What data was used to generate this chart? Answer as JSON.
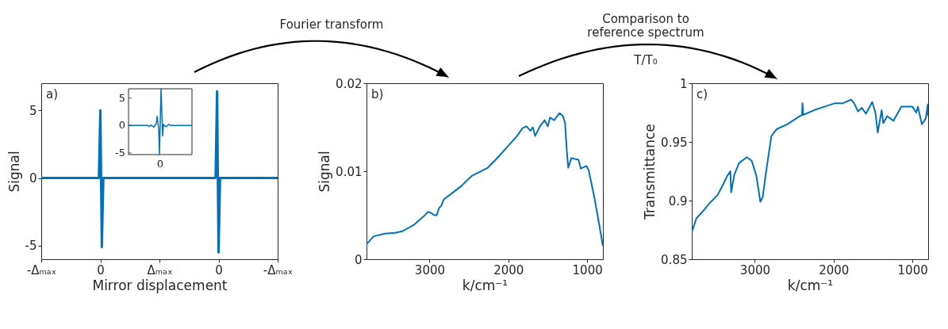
{
  "chart_data": [
    {
      "type": "line",
      "annotations": [
        "a)"
      ],
      "xlabel": "Mirror displacement",
      "ylabel": "Signal",
      "ylim": [
        -6,
        7
      ],
      "yticks": [
        -5,
        0,
        5
      ],
      "categories": [
        "-Δₘₐₓ",
        null,
        null,
        null,
        null,
        null,
        null,
        null,
        null,
        null,
        null,
        null,
        null,
        null,
        null,
        null,
        null,
        null,
        null,
        null,
        null,
        null,
        null,
        null,
        null,
        null,
        null,
        null,
        null,
        null,
        null,
        null,
        null,
        null,
        null,
        null,
        null,
        null,
        null,
        null,
        "0",
        null,
        null,
        null,
        null,
        null,
        null,
        null,
        null,
        null,
        null,
        null,
        null,
        null,
        null,
        null,
        null,
        null,
        null,
        null,
        null,
        null,
        null,
        null,
        null,
        null,
        null,
        null,
        null,
        null,
        null,
        null,
        null,
        null,
        null,
        null,
        null,
        null,
        null,
        null,
        "Δₘₐₓ",
        null,
        null,
        null,
        null,
        null,
        null,
        null,
        null,
        null,
        null,
        null,
        null,
        null,
        null,
        null,
        null,
        null,
        null,
        null,
        null,
        null,
        null,
        null,
        null,
        null,
        null,
        null,
        null,
        null,
        null,
        null,
        null,
        null,
        null,
        null,
        null,
        null,
        null,
        null,
        "0",
        null,
        null,
        null,
        null,
        null,
        null,
        null,
        null,
        null,
        null,
        null,
        null,
        null,
        null,
        null,
        null,
        null,
        null,
        null,
        null,
        null,
        null,
        null,
        null,
        null,
        null,
        null,
        null,
        null,
        null,
        null,
        null,
        null,
        null,
        null,
        null,
        null,
        null,
        null,
        "-Δₘₐₓ"
      ],
      "series": [
        {
          "color": "#0072bd",
          "values": [
            0,
            0,
            0,
            0,
            0,
            0,
            0,
            0,
            0,
            0,
            0,
            0,
            0,
            0,
            0,
            0,
            0,
            0,
            0,
            0,
            0,
            0,
            0,
            0,
            0,
            0,
            0,
            0,
            0,
            0,
            0,
            0,
            0,
            0,
            0,
            0,
            0,
            0,
            0,
            0,
            5,
            -5.1,
            0,
            0,
            0,
            0,
            0,
            0,
            0,
            0,
            0,
            0,
            0,
            0,
            0,
            0,
            0,
            0,
            0,
            0,
            0,
            0,
            0,
            0,
            0,
            0,
            0,
            0,
            0,
            0,
            0,
            0,
            0,
            0,
            0,
            0,
            0,
            0,
            0,
            0,
            0,
            0,
            0,
            0,
            0,
            0,
            0,
            0,
            0,
            0,
            0,
            0,
            0,
            0,
            0,
            0,
            0,
            0,
            0,
            0,
            0,
            0,
            0,
            0,
            0,
            0,
            0,
            0,
            0,
            0,
            0,
            0,
            0,
            0,
            0,
            0,
            0,
            0,
            0,
            6.4,
            -5.5,
            0,
            0,
            0,
            0,
            0,
            0,
            0,
            0,
            0,
            0,
            0,
            0,
            0,
            0,
            0,
            0,
            0,
            0,
            0,
            0,
            0,
            0,
            0,
            0,
            0,
            0,
            0,
            0,
            0,
            0,
            0,
            0,
            0,
            0,
            0,
            0,
            0,
            0,
            0,
            0
          ]
        }
      ]
    },
    {
      "type": "line",
      "ylim": [
        -5.3,
        6.7
      ],
      "yticks": [
        -5,
        0,
        5
      ],
      "categories": [
        null,
        null,
        null,
        null,
        null,
        null,
        null,
        null,
        null,
        null,
        null,
        null,
        null,
        null,
        null,
        null,
        null,
        null,
        null,
        null,
        null,
        null,
        null,
        null,
        null,
        null,
        null,
        null,
        null,
        null,
        null,
        null,
        null,
        null,
        null,
        null,
        null,
        null,
        null,
        null,
        "0",
        null,
        null,
        null,
        null,
        null,
        null,
        null,
        null,
        null,
        null,
        null,
        null,
        null,
        null,
        null,
        null,
        null,
        null,
        null,
        null,
        null,
        null,
        null,
        null,
        null,
        null,
        null,
        null,
        null,
        null,
        null,
        null,
        null,
        null,
        null,
        null,
        null,
        null,
        null,
        null
      ],
      "series": [
        {
          "color": "#0072bd",
          "values": [
            0,
            0,
            0,
            0,
            0,
            0,
            0,
            0,
            0,
            0,
            0,
            0,
            0,
            0,
            0,
            0,
            0,
            0,
            0,
            0,
            0,
            0,
            0,
            0,
            0,
            0,
            -0.2,
            0,
            0.1,
            0,
            -0.1,
            -0.2,
            -0.3,
            0,
            0.2,
            0.3,
            1.7,
            0.6,
            -0.5,
            -5.3,
            0.7,
            6.7,
            2.4,
            -1.9,
            0.2,
            0,
            -0.1,
            -0.2,
            -0.2,
            0,
            0.1,
            0.2,
            0.1,
            0,
            0,
            0,
            0,
            0,
            0,
            0,
            0,
            0,
            0,
            0,
            0,
            0,
            0,
            0,
            0,
            0,
            0,
            0,
            0,
            0,
            0,
            0,
            0,
            0,
            0,
            0,
            0
          ]
        }
      ]
    },
    {
      "type": "line",
      "annotations": [
        "b)",
        "Fourier transform"
      ],
      "xlabel": "k/cm⁻¹",
      "ylabel": "Signal",
      "xlim": [
        3800,
        800
      ],
      "ylim": [
        0,
        0.02
      ],
      "xticks": [
        3000,
        2000,
        1000
      ],
      "yticks": [
        0,
        0.01,
        0.02
      ],
      "x": [
        3800,
        3710,
        3570,
        3440,
        3340,
        3200,
        3070,
        3020,
        2970,
        2940,
        2910,
        2880,
        2850,
        2820,
        2730,
        2600,
        2460,
        2390,
        2260,
        2130,
        1990,
        1890,
        1820,
        1770,
        1720,
        1690,
        1660,
        1600,
        1540,
        1500,
        1470,
        1420,
        1350,
        1310,
        1280,
        1260,
        1240,
        1200,
        1110,
        1080,
        1010,
        980,
        910,
        850,
        800
      ],
      "series": [
        {
          "color": "#0072bd",
          "values": [
            0.0017,
            0.0026,
            0.0029,
            0.003,
            0.0032,
            0.0039,
            0.0049,
            0.0054,
            0.0052,
            0.005,
            0.005,
            0.0058,
            0.0061,
            0.0068,
            0.0074,
            0.0083,
            0.0095,
            0.0098,
            0.0104,
            0.0116,
            0.013,
            0.014,
            0.0149,
            0.0151,
            0.0146,
            0.015,
            0.014,
            0.0151,
            0.0158,
            0.0151,
            0.0161,
            0.0158,
            0.0166,
            0.0163,
            0.0155,
            0.0125,
            0.0104,
            0.0115,
            0.0113,
            0.0103,
            0.0106,
            0.0101,
            0.0071,
            0.0041,
            0.0015
          ]
        }
      ]
    },
    {
      "type": "line",
      "annotations": [
        "c)",
        "Comparison to reference spectrum",
        "T/T₀"
      ],
      "xlabel": "k/cm⁻¹",
      "ylabel": "Transmittance",
      "xlim": [
        3800,
        800
      ],
      "ylim": [
        0.85,
        1
      ],
      "xticks": [
        3000,
        2000,
        1000
      ],
      "yticks": [
        0.85,
        0.9,
        0.95,
        1
      ],
      "x": [
        3800,
        3740,
        3670,
        3570,
        3470,
        3400,
        3350,
        3310,
        3300,
        3260,
        3200,
        3100,
        3040,
        2980,
        2930,
        2900,
        2860,
        2790,
        2720,
        2590,
        2450,
        2400,
        2395,
        2385,
        2250,
        2120,
        1980,
        1880,
        1780,
        1740,
        1690,
        1640,
        1590,
        1510,
        1470,
        1440,
        1390,
        1370,
        1320,
        1240,
        1140,
        1000,
        950,
        930,
        880,
        830,
        805,
        800
      ],
      "series": [
        {
          "color": "#0072bd",
          "values": [
            0.873,
            0.885,
            0.89,
            0.898,
            0.905,
            0.914,
            0.921,
            0.925,
            0.907,
            0.922,
            0.932,
            0.937,
            0.934,
            0.921,
            0.899,
            0.903,
            0.923,
            0.955,
            0.961,
            0.965,
            0.971,
            0.973,
            0.983,
            0.973,
            0.977,
            0.98,
            0.983,
            0.983,
            0.986,
            0.983,
            0.976,
            0.979,
            0.974,
            0.984,
            0.975,
            0.958,
            0.977,
            0.966,
            0.972,
            0.968,
            0.98,
            0.98,
            0.975,
            0.98,
            0.965,
            0.97,
            0.982,
            0.972
          ]
        }
      ]
    }
  ]
}
